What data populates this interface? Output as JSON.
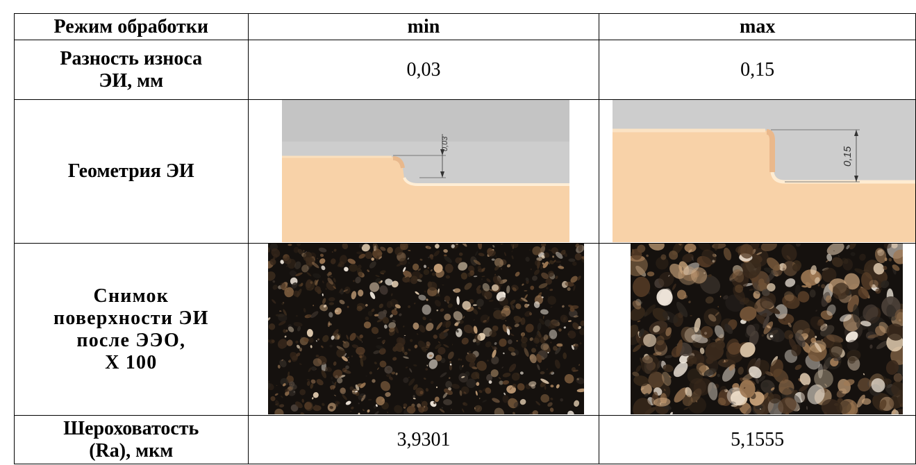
{
  "table": {
    "header": {
      "mode": "Режим обработки",
      "min": "min",
      "max": "max"
    },
    "rows": {
      "wear": {
        "label_line1": "Разность износа",
        "label_line2": "ЭИ, мм",
        "min": "0,03",
        "max": "0,15"
      },
      "geometry": {
        "label": "Геометрия ЭИ",
        "min_dim": "0,03",
        "max_dim": "0,15"
      },
      "photo": {
        "label_line1": "Снимок",
        "label_line2": "поверхности ЭИ",
        "label_line3": "после ЭЭО,",
        "label_line4": "X 100"
      },
      "roughness": {
        "label_line1": "Шероховатость",
        "label_line2": "(Ra), мкм",
        "min": "3,9301",
        "max": "5,1555"
      }
    }
  },
  "colors": {
    "part": "#f8d2a8",
    "background_gray": "#c8c8c8",
    "photo_dark": "#15110e"
  }
}
